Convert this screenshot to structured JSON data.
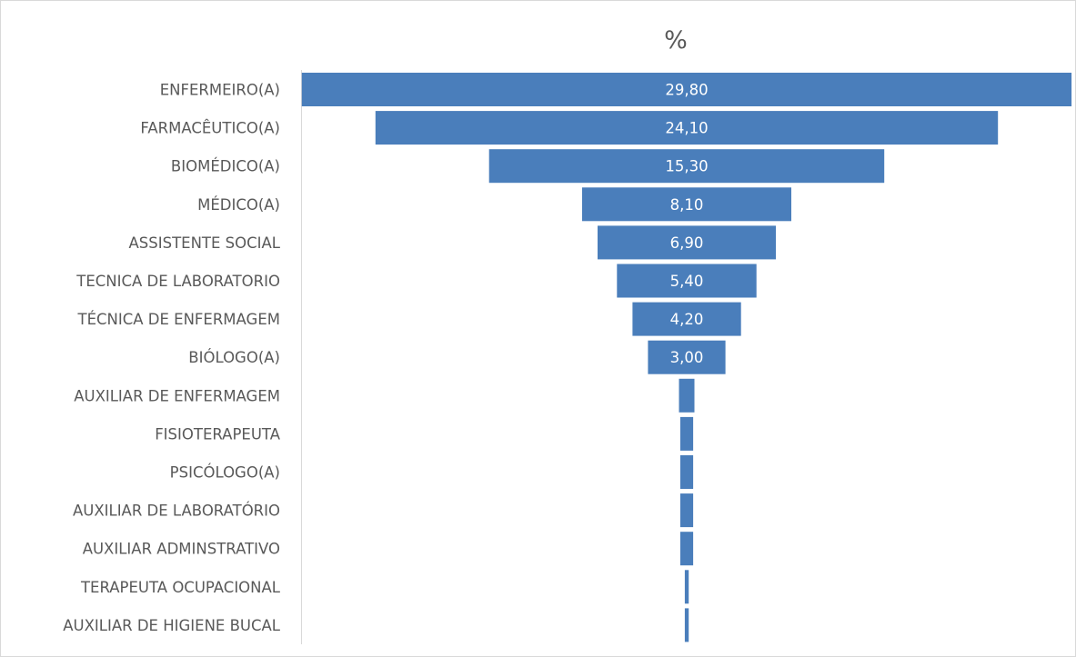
{
  "chart_data": {
    "type": "bar",
    "orientation": "horizontal-centered-funnel",
    "title": "%",
    "xlabel": "",
    "ylabel": "",
    "grid": false,
    "legend": "none",
    "bar_color": "#4a7ebb",
    "categories": [
      "ENFERMEIRO(A)",
      "FARMACÊUTICO(A)",
      "BIOMÉDICO(A)",
      "MÉDICO(A)",
      "ASSISTENTE SOCIAL",
      "TECNICA DE LABORATORIO",
      "TÉCNICA DE ENFERMAGEM",
      "BIÓLOGO(A)",
      "AUXILIAR DE ENFERMAGEM",
      "FISIOTERAPEUTA",
      "PSICÓLOGO(A)",
      "AUXILIAR DE LABORATÓRIO",
      "AUXILIAR ADMINSTRATIVO",
      "TERAPEUTA OCUPACIONAL",
      "AUXILIAR DE HIGIENE BUCAL"
    ],
    "values": [
      29.8,
      24.1,
      15.3,
      8.1,
      6.9,
      5.4,
      4.2,
      3.0,
      0.6,
      0.5,
      0.5,
      0.5,
      0.5,
      0.15,
      0.15
    ],
    "data_labels": [
      "29,80",
      "24,10",
      "15,30",
      "8,10",
      "6,90",
      "5,40",
      "4,20",
      "3,00",
      "",
      "",
      "",
      "",
      "",
      "",
      ""
    ]
  }
}
